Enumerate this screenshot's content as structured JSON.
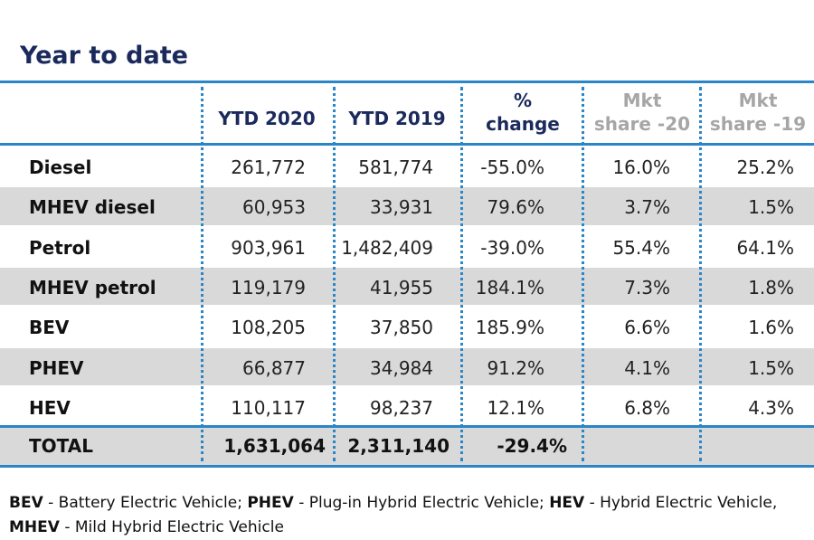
{
  "title": "Year to date",
  "chart_data": {
    "type": "table",
    "title": "Year to date",
    "columns": [
      "",
      "YTD 2020",
      "YTD 2019",
      "% change",
      "Mkt share -20",
      "Mkt share -19"
    ],
    "header": {
      "ytd2020": "YTD 2020",
      "ytd2019": "YTD 2019",
      "change_l1": "%",
      "change_l2": "change",
      "share20_l1": "Mkt",
      "share20_l2": "share -20",
      "share19_l1": "Mkt",
      "share19_l2": "share -19"
    },
    "rows": [
      {
        "label": "Diesel",
        "ytd2020": "261,772",
        "ytd2019": "581,774",
        "change": "-55.0%",
        "share20": "16.0%",
        "share19": "25.2%"
      },
      {
        "label": "MHEV diesel",
        "ytd2020": "60,953",
        "ytd2019": "33,931",
        "change": "79.6%",
        "share20": "3.7%",
        "share19": "1.5%"
      },
      {
        "label": "Petrol",
        "ytd2020": "903,961",
        "ytd2019": "1,482,409",
        "change": "-39.0%",
        "share20": "55.4%",
        "share19": "64.1%"
      },
      {
        "label": "MHEV petrol",
        "ytd2020": "119,179",
        "ytd2019": "41,955",
        "change": "184.1%",
        "share20": "7.3%",
        "share19": "1.8%"
      },
      {
        "label": "BEV",
        "ytd2020": "108,205",
        "ytd2019": "37,850",
        "change": "185.9%",
        "share20": "6.6%",
        "share19": "1.6%"
      },
      {
        "label": "PHEV",
        "ytd2020": "66,877",
        "ytd2019": "34,984",
        "change": "91.2%",
        "share20": "4.1%",
        "share19": "1.5%"
      },
      {
        "label": "HEV",
        "ytd2020": "110,117",
        "ytd2019": "98,237",
        "change": "12.1%",
        "share20": "6.8%",
        "share19": "4.3%"
      }
    ],
    "total": {
      "label": "TOTAL",
      "ytd2020": "1,631,064",
      "ytd2019": "2,311,140",
      "change": "-29.4%",
      "share20": "",
      "share19": ""
    }
  },
  "footnote": {
    "bev_abbr": "BEV",
    "bev_text": " - Battery Electric Vehicle; ",
    "phev_abbr": "PHEV",
    "phev_text": " - Plug-in Hybrid Electric Vehicle; ",
    "hev_abbr": "HEV",
    "hev_text": " - Hybrid Electric Vehicle,",
    "mhev_abbr": "MHEV",
    "mhev_text": " - Mild Hybrid Electric Vehicle"
  },
  "colors": {
    "accent_blue": "#2b86c8",
    "title_navy": "#1b2a5c",
    "band_grey": "#d9d9d9",
    "muted_header": "#a6a6a6"
  }
}
